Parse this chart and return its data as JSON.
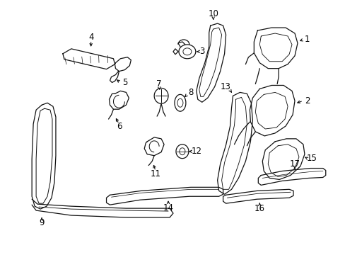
{
  "background_color": "#ffffff",
  "line_color": "#111111",
  "fig_width": 4.89,
  "fig_height": 3.6,
  "dpi": 100
}
